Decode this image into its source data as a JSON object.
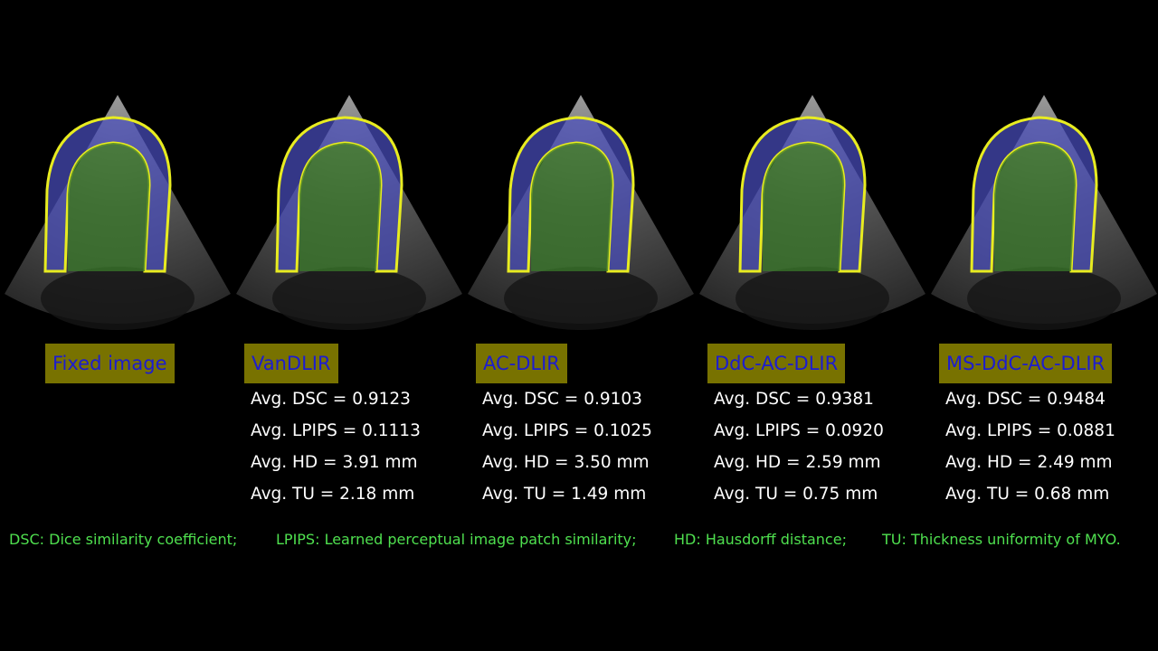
{
  "panels": [
    {
      "label": "Fixed image"
    },
    {
      "label": "VanDLIR",
      "metrics": [
        "Avg. DSC = 0.9123",
        "Avg. LPIPS = 0.1113",
        "Avg. HD = 3.91 mm",
        "Avg. TU = 2.18 mm"
      ]
    },
    {
      "label": "AC-DLIR",
      "metrics": [
        "Avg. DSC = 0.9103",
        "Avg. LPIPS = 0.1025",
        "Avg. HD = 3.50 mm",
        "Avg. TU = 1.49 mm"
      ]
    },
    {
      "label": "DdC-AC-DLIR",
      "metrics": [
        "Avg. DSC = 0.9381",
        "Avg. LPIPS = 0.0920",
        "Avg. HD = 2.59 mm",
        "Avg. TU = 0.75 mm"
      ]
    },
    {
      "label": "MS-DdC-AC-DLIR",
      "metrics": [
        "Avg. DSC = 0.9484",
        "Avg. LPIPS = 0.0881",
        "Avg. HD = 2.49 mm",
        "Avg. TU = 0.68 mm"
      ]
    }
  ],
  "footnotes": [
    "DSC: Dice similarity coefficient;",
    "LPIPS: Learned perceptual image patch similarity;",
    "HD: Hausdorff distance;",
    "TU: Thickness uniformity of MYO."
  ]
}
